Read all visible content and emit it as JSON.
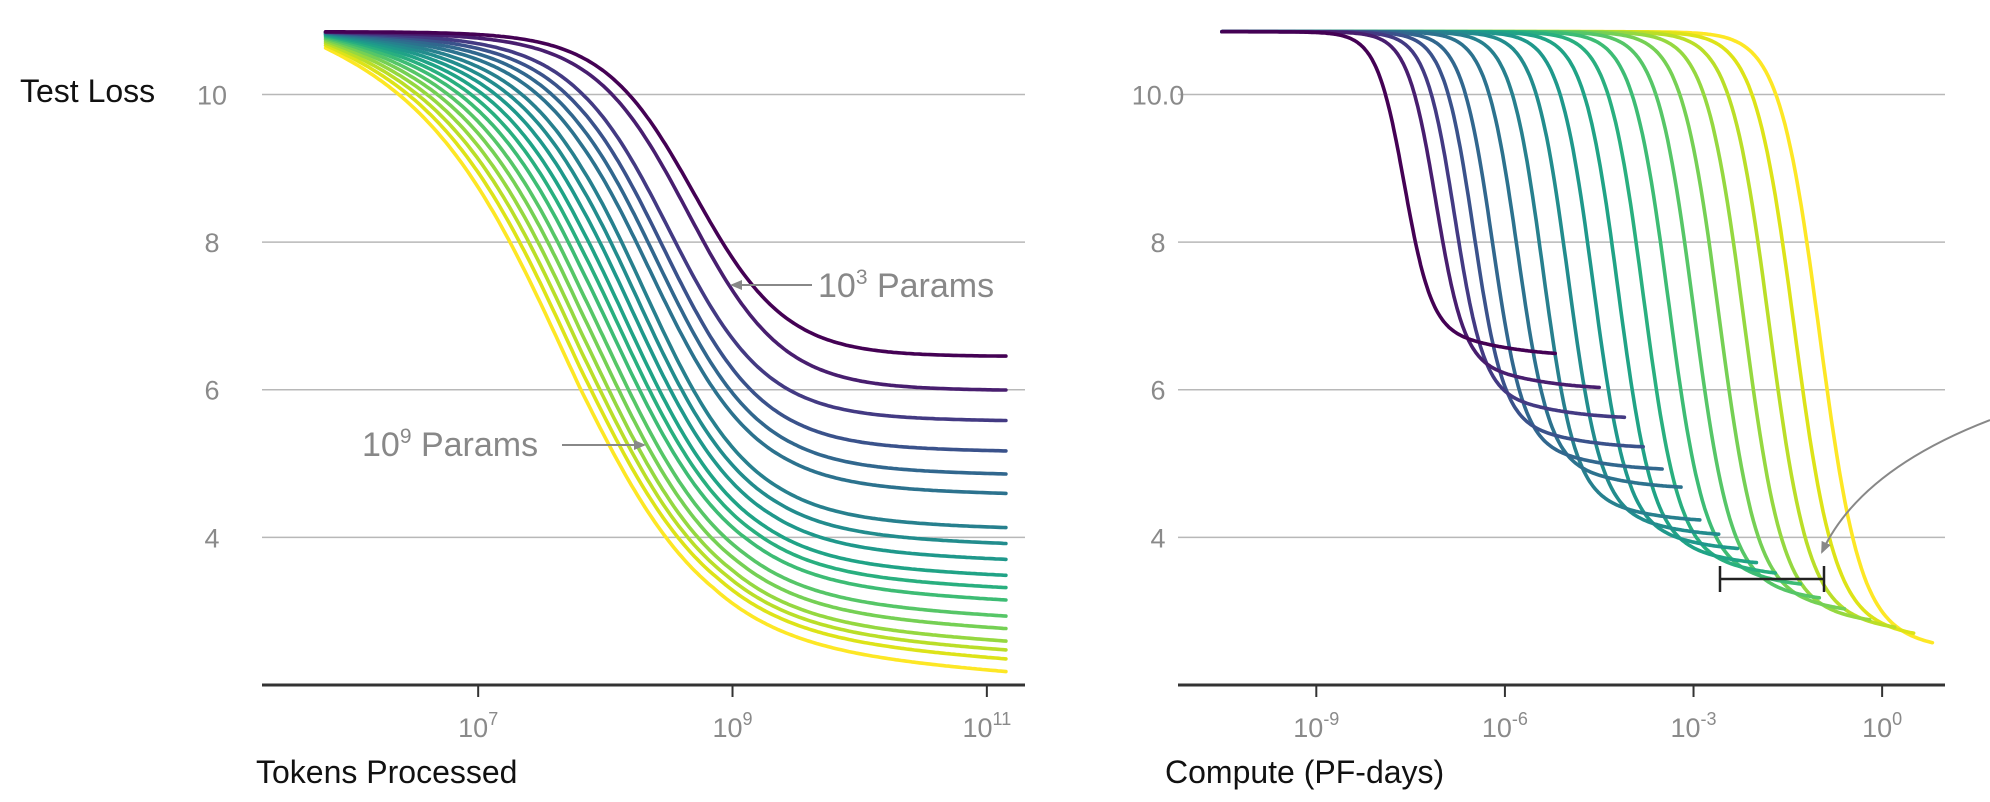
{
  "chart_data": [
    {
      "type": "line",
      "panel": "left",
      "ylabel": "Test Loss",
      "xlabel": "Tokens Processed",
      "xscale": "log",
      "xlim_log10": [
        5.3,
        11.3
      ],
      "ylim": [
        2.0,
        10.9
      ],
      "yticks": [
        {
          "value": 10,
          "label": "10"
        },
        {
          "value": 8,
          "label": "8"
        },
        {
          "value": 6,
          "label": "6"
        },
        {
          "value": 4,
          "label": "4"
        }
      ],
      "xticks": [
        {
          "log10": 7,
          "base": "10",
          "exp": "7"
        },
        {
          "log10": 9,
          "base": "10",
          "exp": "9"
        },
        {
          "log10": 11,
          "base": "10",
          "exp": "11"
        }
      ],
      "annotations": [
        {
          "base": "10",
          "exp": "3",
          "text": " Params",
          "points_to": "smallest model (1e3 params)",
          "arrow": "left",
          "at": {
            "log10_x": 9.5,
            "y": 7.4
          }
        },
        {
          "base": "10",
          "exp": "9",
          "text": " Params",
          "points_to": "largest model (1e9 params)",
          "arrow": "right",
          "at": {
            "log10_x": 6.6,
            "y": 5.3
          }
        }
      ],
      "series": [
        {
          "name": "model 1 (1e3 params)",
          "color": "#440154",
          "knee_log10": 8.7,
          "final_loss": 6.45
        },
        {
          "name": "model 2",
          "color": "#481e6f",
          "knee_log10": 8.65,
          "final_loss": 6.0
        },
        {
          "name": "model 3",
          "color": "#433a83",
          "knee_log10": 8.5,
          "final_loss": 5.6
        },
        {
          "name": "model 4",
          "color": "#3a528b",
          "knee_log10": 8.45,
          "final_loss": 5.2
        },
        {
          "name": "model 5",
          "color": "#31678e",
          "knee_log10": 8.4,
          "final_loss": 4.9
        },
        {
          "name": "model 6",
          "color": "#2c728e",
          "knee_log10": 8.35,
          "final_loss": 4.65
        },
        {
          "name": "model 7",
          "color": "#27808e",
          "knee_log10": 8.3,
          "final_loss": 4.2
        },
        {
          "name": "model 8",
          "color": "#228c8d",
          "knee_log10": 8.25,
          "final_loss": 4.0
        },
        {
          "name": "model 9",
          "color": "#1f988b",
          "knee_log10": 8.2,
          "final_loss": 3.8
        },
        {
          "name": "model 10",
          "color": "#20a386",
          "knee_log10": 8.15,
          "final_loss": 3.6
        },
        {
          "name": "model 11",
          "color": "#29af7f",
          "knee_log10": 8.1,
          "final_loss": 3.45
        },
        {
          "name": "model 12",
          "color": "#3dbc74",
          "knee_log10": 8.05,
          "final_loss": 3.3
        },
        {
          "name": "model 13",
          "color": "#56c667",
          "knee_log10": 8.0,
          "final_loss": 3.1
        },
        {
          "name": "model 14",
          "color": "#75d054",
          "knee_log10": 7.95,
          "final_loss": 2.95
        },
        {
          "name": "model 15",
          "color": "#95d840",
          "knee_log10": 7.9,
          "final_loss": 2.8
        },
        {
          "name": "model 16",
          "color": "#bade28",
          "knee_log10": 7.85,
          "final_loss": 2.7
        },
        {
          "name": "model 17",
          "color": "#dde318",
          "knee_log10": 7.8,
          "final_loss": 2.6
        },
        {
          "name": "model 18 (1e9 params)",
          "color": "#fde725",
          "knee_log10": 7.75,
          "final_loss": 2.45
        }
      ]
    },
    {
      "type": "line",
      "panel": "right",
      "ylabel": "",
      "xlabel": "Compute (PF-days)",
      "xscale": "log",
      "xlim_log10": [
        -11.2,
        1.0
      ],
      "ylim": [
        2.0,
        10.9
      ],
      "yticks": [
        {
          "value": 10,
          "label": "10.0"
        },
        {
          "value": 8,
          "label": "8"
        },
        {
          "value": 6,
          "label": "6"
        },
        {
          "value": 4,
          "label": "4"
        }
      ],
      "xticks": [
        {
          "log10": -9,
          "base": "10",
          "exp": "-9"
        },
        {
          "log10": -6,
          "base": "10",
          "exp": "-6"
        },
        {
          "log10": -3,
          "base": "10",
          "exp": "-3"
        },
        {
          "log10": 0,
          "base": "10",
          "exp": "0"
        }
      ],
      "annotations": [
        {
          "type": "bracket",
          "description": "horizontal compute gap bracket",
          "y": 3.45,
          "from_log10": -2.6,
          "to_log10": -1.0
        },
        {
          "type": "curved-arrow",
          "description": "arrow from off-panel pointing to bracket end",
          "target_log10": -1.0,
          "target_y": 3.95
        }
      ],
      "series": [
        {
          "name": "model 1 (1e3 params)",
          "color": "#440154",
          "drop_log10": -7.6,
          "end_log10": -5.2,
          "final_loss": 6.45
        },
        {
          "name": "model 2",
          "color": "#481e6f",
          "drop_log10": -7.1,
          "end_log10": -4.5,
          "final_loss": 6.0
        },
        {
          "name": "model 3",
          "color": "#433a83",
          "drop_log10": -6.8,
          "end_log10": -4.1,
          "final_loss": 5.6
        },
        {
          "name": "model 4",
          "color": "#3a528b",
          "drop_log10": -6.5,
          "end_log10": -3.8,
          "final_loss": 5.2
        },
        {
          "name": "model 5",
          "color": "#31678e",
          "drop_log10": -6.2,
          "end_log10": -3.5,
          "final_loss": 4.9
        },
        {
          "name": "model 6",
          "color": "#2c728e",
          "drop_log10": -5.8,
          "end_log10": -3.2,
          "final_loss": 4.65
        },
        {
          "name": "model 7",
          "color": "#27808e",
          "drop_log10": -5.4,
          "end_log10": -2.9,
          "final_loss": 4.2
        },
        {
          "name": "model 8",
          "color": "#228c8d",
          "drop_log10": -5.0,
          "end_log10": -2.6,
          "final_loss": 4.0
        },
        {
          "name": "model 9",
          "color": "#1f988b",
          "drop_log10": -4.6,
          "end_log10": -2.3,
          "final_loss": 3.8
        },
        {
          "name": "model 10",
          "color": "#20a386",
          "drop_log10": -4.2,
          "end_log10": -2.0,
          "final_loss": 3.6
        },
        {
          "name": "model 11",
          "color": "#29af7f",
          "drop_log10": -3.8,
          "end_log10": -1.7,
          "final_loss": 3.45
        },
        {
          "name": "model 12",
          "color": "#3dbc74",
          "drop_log10": -3.4,
          "end_log10": -1.3,
          "final_loss": 3.3
        },
        {
          "name": "model 13",
          "color": "#56c667",
          "drop_log10": -3.0,
          "end_log10": -1.0,
          "final_loss": 3.1
        },
        {
          "name": "model 14",
          "color": "#75d054",
          "drop_log10": -2.6,
          "end_log10": -0.6,
          "final_loss": 2.95
        },
        {
          "name": "model 15",
          "color": "#95d840",
          "drop_log10": -2.2,
          "end_log10": -0.2,
          "final_loss": 2.8
        },
        {
          "name": "model 16",
          "color": "#bade28",
          "drop_log10": -1.8,
          "end_log10": 0.2,
          "final_loss": 2.7
        },
        {
          "name": "model 17",
          "color": "#dde318",
          "drop_log10": -1.4,
          "end_log10": 0.5,
          "final_loss": 2.6
        },
        {
          "name": "model 18 (1e9 params)",
          "color": "#fde725",
          "drop_log10": -1.0,
          "end_log10": 0.8,
          "final_loss": 2.45
        }
      ]
    }
  ]
}
